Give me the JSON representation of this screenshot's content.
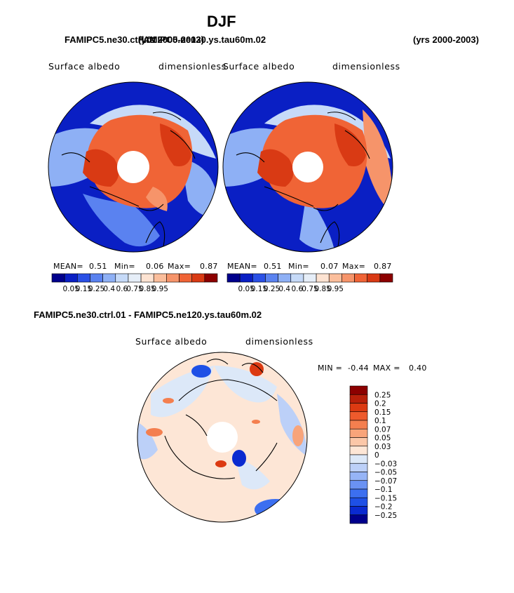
{
  "page": {
    "season": "DJF",
    "case_a": "FAMIPC5.ne30.ctrl.01",
    "case_b": "FAMIPC5.ne120.ys.tau60m.02",
    "case_a_years": "(yrs 2000-2003)",
    "case_b_years": "(yrs 2000-2003)",
    "diff_title": "FAMIPC5.ne30.ctrl.01 - FAMIPC5.ne120.ys.tau60m.02"
  },
  "colors": {
    "abs_palette": [
      "#00008c",
      "#0a1fc4",
      "#2a50e6",
      "#5a82f0",
      "#8eb0f5",
      "#c6daf8",
      "#e6eef8",
      "#fde3d2",
      "#fbbe9c",
      "#f6946a",
      "#f06436",
      "#d93a14",
      "#8c0000"
    ],
    "diff_palette": [
      "#00008c",
      "#0a2ad0",
      "#1e50e6",
      "#3c6ff0",
      "#6a92f3",
      "#96b4f6",
      "#bcd0f8",
      "#dce8f8",
      "#fde6d6",
      "#fbc7a8",
      "#f8a47a",
      "#f47f4f",
      "#ee5a2c",
      "#dc3a12",
      "#b8200a",
      "#8c0000"
    ]
  },
  "chart_data": [
    {
      "type": "heatmap",
      "projection": "north polar stereographic",
      "case": "FAMIPC5.ne30.ctrl.01",
      "variable": "Surface albedo",
      "units": "dimensionless",
      "stats": {
        "mean_label": "MEAN=",
        "mean": "0.51",
        "min_label": "Min=",
        "min": "0.06",
        "max_label": "Max=",
        "max": "0.87"
      },
      "colorbar_levels": [
        "0.05",
        "0.15",
        "0.25",
        "0.4",
        "0.6",
        "0.75",
        "0.85",
        "0.95"
      ]
    },
    {
      "type": "heatmap",
      "projection": "north polar stereographic",
      "case": "FAMIPC5.ne120.ys.tau60m.02",
      "variable": "Surface albedo",
      "units": "dimensionless",
      "stats": {
        "mean_label": "MEAN=",
        "mean": "0.51",
        "min_label": "Min=",
        "min": "0.07",
        "max_label": "Max=",
        "max": "0.87"
      },
      "colorbar_levels": [
        "0.05",
        "0.15",
        "0.25",
        "0.4",
        "0.6",
        "0.75",
        "0.85",
        "0.95"
      ]
    },
    {
      "type": "heatmap",
      "projection": "north polar stereographic",
      "case": "difference",
      "variable": "Surface albedo",
      "units": "dimensionless",
      "stats": {
        "min_label": "MIN =",
        "min": "-0.44",
        "max_label": "MAX =",
        "max": "0.40"
      },
      "colorbar_levels": [
        "0.25",
        "0.2",
        "0.15",
        "0.1",
        "0.07",
        "0.05",
        "0.03",
        "0",
        "−0.03",
        "−0.05",
        "−0.07",
        "−0.1",
        "−0.15",
        "−0.2",
        "−0.25"
      ]
    }
  ]
}
